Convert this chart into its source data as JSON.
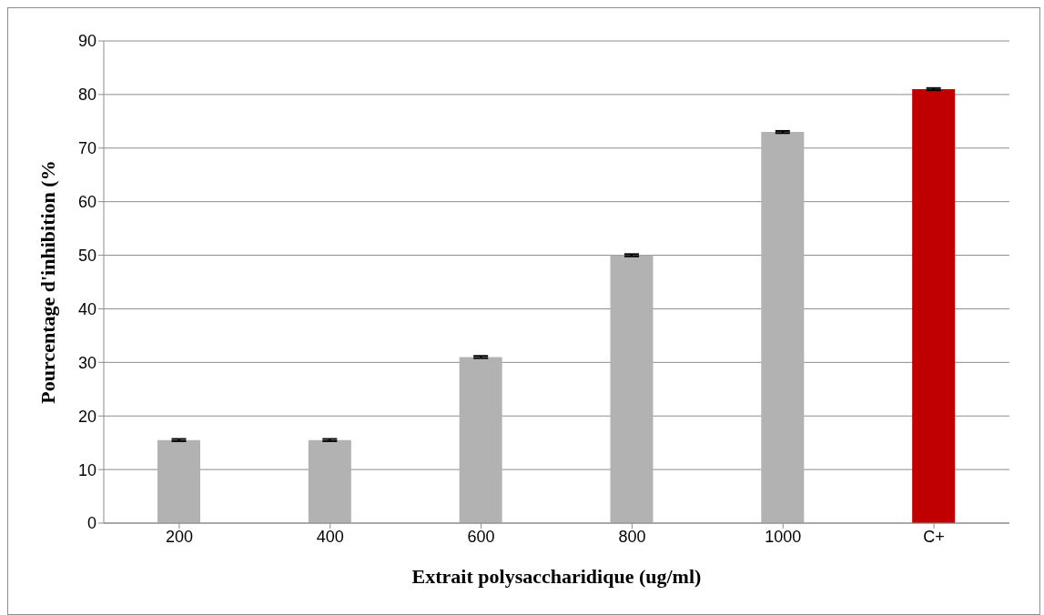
{
  "chart_data": {
    "type": "bar",
    "xlabel": "Extrait polysaccharidique (ug/ml)",
    "ylabel": "Pourcentage d'inhibition (%",
    "categories": [
      "200",
      "400",
      "600",
      "800",
      "1000",
      "C+"
    ],
    "values": [
      15.5,
      15.5,
      31,
      50,
      73,
      81
    ],
    "errors": [
      0.2,
      0.2,
      0.2,
      0.2,
      0.2,
      0.2
    ],
    "colors": [
      "#b2b2b2",
      "#b2b2b2",
      "#b2b2b2",
      "#b2b2b2",
      "#b2b2b2",
      "#c00000"
    ],
    "ylim": [
      0,
      90
    ],
    "yticks": [
      0,
      10,
      20,
      30,
      40,
      50,
      60,
      70,
      80,
      90
    ],
    "grid": "y"
  }
}
